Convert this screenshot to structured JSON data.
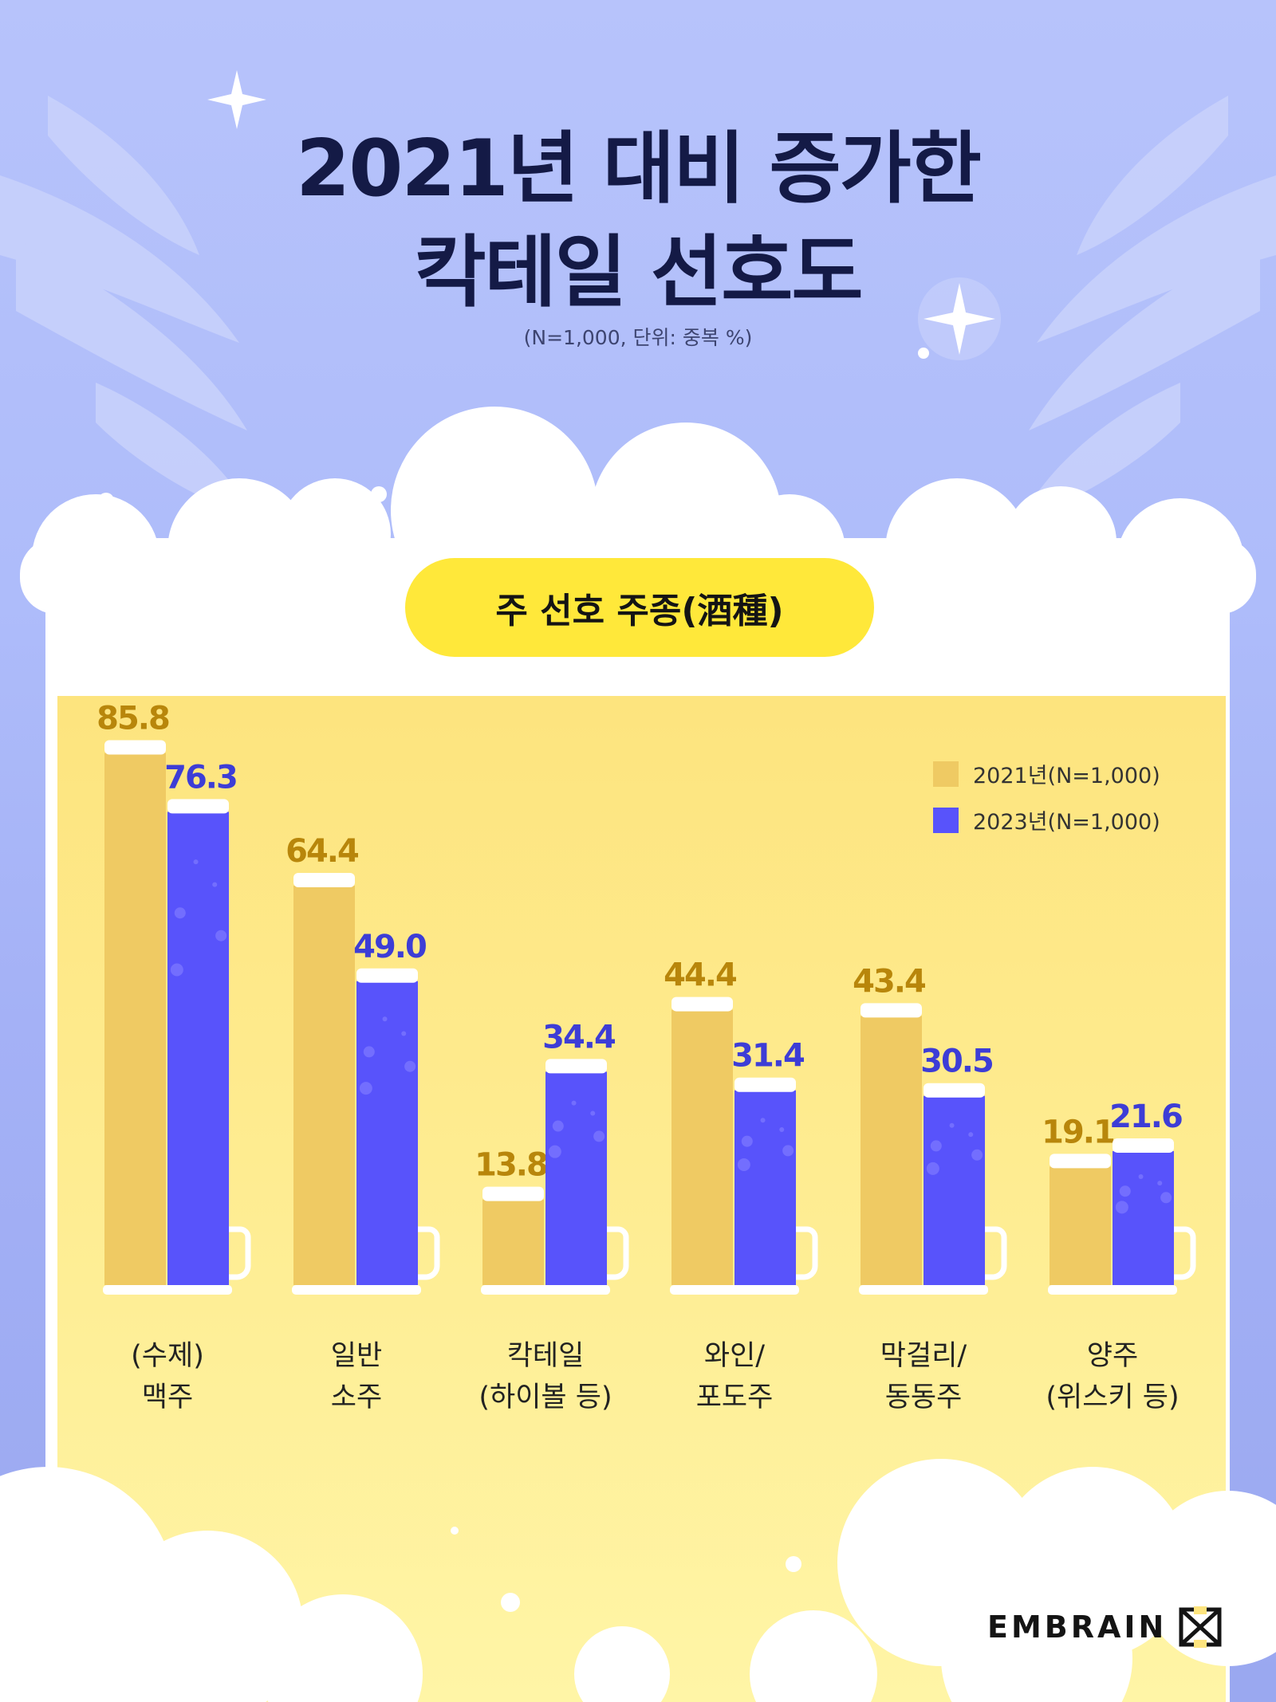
{
  "title": {
    "line1": "2021년 대비 증가한",
    "line2": "칵테일 선호도"
  },
  "subtitle": "(N=1,000, 단위: 중복 %)",
  "badge": "주 선호 주종(酒種)",
  "logo": {
    "text": "EMBRAIN"
  },
  "colors": {
    "s2021": "#efca63",
    "s2023": "#5853fb",
    "cardTop": "#fde47e",
    "cardBottom": "#fff5a6",
    "title": "#141a46"
  },
  "chart_data": {
    "type": "bar",
    "categories": [
      [
        "(수제)",
        "맥주"
      ],
      [
        "일반",
        "소주"
      ],
      [
        "칵테일",
        "(하이볼 등)"
      ],
      [
        "와인/",
        "포도주"
      ],
      [
        "막걸리/",
        "동동주"
      ],
      [
        "양주",
        "(위스키 등)"
      ]
    ],
    "series": [
      {
        "name": "2021년(N=1,000)",
        "values": [
          85.8,
          64.4,
          13.8,
          44.4,
          43.4,
          19.1
        ],
        "labels": [
          "85.8",
          "64.4",
          "13.8",
          "44.4",
          "43.4",
          "19.1"
        ]
      },
      {
        "name": "2023년(N=1,000)",
        "values": [
          76.3,
          49.0,
          34.4,
          31.4,
          30.5,
          21.6
        ],
        "labels": [
          "76.3",
          "49.0",
          "34.4",
          "31.4",
          "30.5",
          "21.6"
        ]
      }
    ],
    "ylim": [
      0,
      100
    ],
    "legend": "top-right",
    "grid": false
  }
}
